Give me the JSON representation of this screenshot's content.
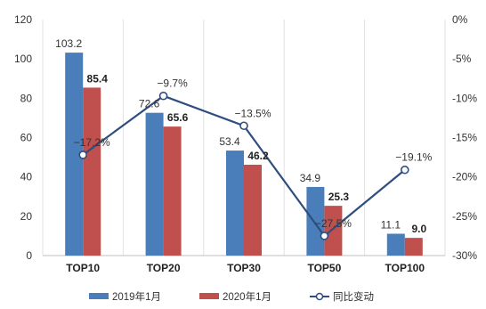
{
  "chart_data": {
    "type": "bar",
    "categories": [
      "TOP10",
      "TOP20",
      "TOP30",
      "TOP50",
      "TOP100"
    ],
    "series": [
      {
        "name": "2019年1月",
        "type": "bar",
        "axis": "left",
        "values": [
          103.2,
          72.6,
          53.4,
          34.9,
          11.1
        ],
        "color": "#4a7ebb",
        "labels": [
          "103.2",
          "72.6",
          "53.4",
          "34.9",
          "11.1"
        ]
      },
      {
        "name": "2020年1月",
        "type": "bar",
        "axis": "left",
        "values": [
          85.4,
          65.6,
          46.2,
          25.3,
          9.0
        ],
        "color": "#c0504d",
        "labels": [
          "85.4",
          "65.6",
          "46.2",
          "25.3",
          "9.0"
        ]
      },
      {
        "name": "同比变动",
        "type": "line",
        "axis": "right",
        "values": [
          -17.2,
          -9.7,
          -13.5,
          -27.5,
          -19.1
        ],
        "color": "#2f4e7f",
        "labels": [
          "−17.2%",
          "−9.7%",
          "−13.5%",
          "−27.5%",
          "−19.1%"
        ]
      }
    ],
    "y_left": {
      "min": 0,
      "max": 120,
      "ticks": [
        0,
        20,
        40,
        60,
        80,
        100,
        120
      ],
      "tick_labels": [
        "0",
        "20",
        "40",
        "60",
        "80",
        "100",
        "120"
      ]
    },
    "y_right": {
      "min": -30,
      "max": 0,
      "ticks": [
        0,
        -5,
        -10,
        -15,
        -20,
        -25,
        -30
      ],
      "tick_labels": [
        "0%",
        "-5%",
        "-10%",
        "-15%",
        "-20%",
        "-25%",
        "-30%"
      ]
    },
    "grid": "vertical",
    "legend_position": "bottom"
  }
}
